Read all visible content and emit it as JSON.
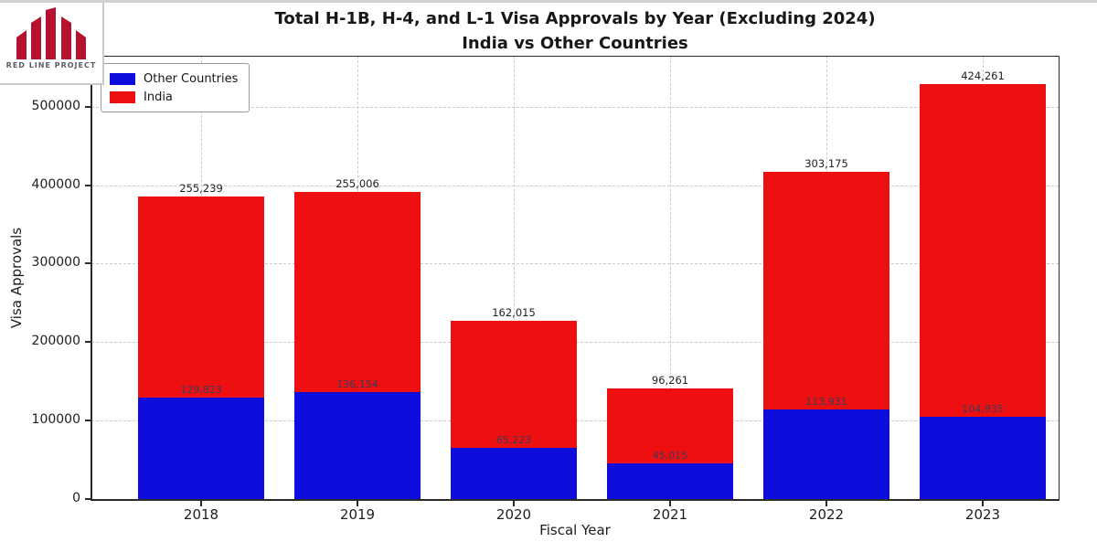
{
  "logo": {
    "text": "RED LINE PROJECT",
    "bar_color": "#b5122f"
  },
  "title": {
    "line1": "Total H-1B, H-4, and L-1 Visa Approvals by Year (Excluding 2024)",
    "line2": "India vs Other Countries"
  },
  "legend": {
    "items": [
      {
        "label": "Other Countries",
        "color": "#0d0ddd"
      },
      {
        "label": "India",
        "color": "#ee1010"
      }
    ]
  },
  "axes": {
    "xlabel": "Fiscal Year",
    "ylabel": "Visa Approvals"
  },
  "chart_data": {
    "type": "bar",
    "stacked": true,
    "title": "Total H-1B, H-4, and L-1 Visa Approvals by Year (Excluding 2024) — India vs Other Countries",
    "xlabel": "Fiscal Year",
    "ylabel": "Visa Approvals",
    "categories": [
      "2018",
      "2019",
      "2020",
      "2021",
      "2022",
      "2023"
    ],
    "series": [
      {
        "name": "Other Countries",
        "color": "#0d0ddd",
        "values": [
          129823,
          136154,
          65223,
          45015,
          113931,
          104935
        ],
        "labels": [
          "129,823",
          "136,154",
          "65,223",
          "45,015",
          "113,931",
          "104,935"
        ]
      },
      {
        "name": "India",
        "color": "#ee1010",
        "values": [
          255239,
          255006,
          162015,
          96261,
          303175,
          424261
        ],
        "labels": [
          "255,239",
          "255,006",
          "162,015",
          "96,261",
          "303,175",
          "424,261"
        ]
      }
    ],
    "totals": [
      385062,
      391160,
      227238,
      141276,
      417106,
      529196
    ],
    "yticks": [
      0,
      100000,
      200000,
      300000,
      400000,
      500000
    ],
    "ylim": [
      0,
      565000
    ],
    "grid": "dashed-both-axes",
    "legend_position": "upper-left"
  }
}
